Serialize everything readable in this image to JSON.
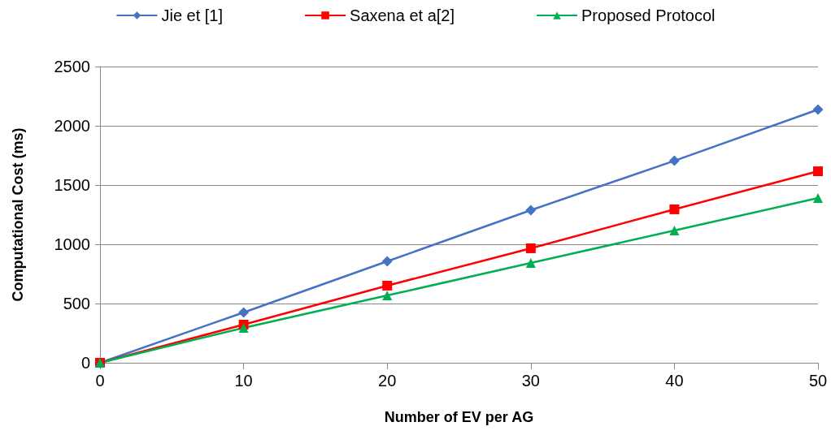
{
  "chart_data": {
    "type": "line",
    "xlabel": "Number of EV per AG",
    "ylabel": "Computational Cost (ms)",
    "x": [
      0,
      10,
      20,
      30,
      40,
      50
    ],
    "series": [
      {
        "name": "Jie et [1]",
        "color": "#4472c4",
        "marker": "diamond",
        "values": [
          0,
          425,
          856,
          1288,
          1705,
          2137
        ]
      },
      {
        "name": "Saxena et a[2]",
        "color": "#ff0000",
        "marker": "square",
        "values": [
          0,
          322,
          651,
          966,
          1295,
          1616
        ]
      },
      {
        "name": "Proposed Protocol",
        "color": "#00b050",
        "marker": "triangle",
        "values": [
          0,
          295,
          568,
          842,
          1116,
          1390
        ]
      }
    ],
    "xlim": [
      0,
      50
    ],
    "xticks": [
      0,
      10,
      20,
      30,
      40,
      50
    ],
    "ylim": [
      0,
      2500
    ],
    "yticks": [
      0,
      500,
      1000,
      1500,
      2000,
      2500
    ],
    "grid": "y",
    "legend": "top",
    "line_style": "solid"
  }
}
